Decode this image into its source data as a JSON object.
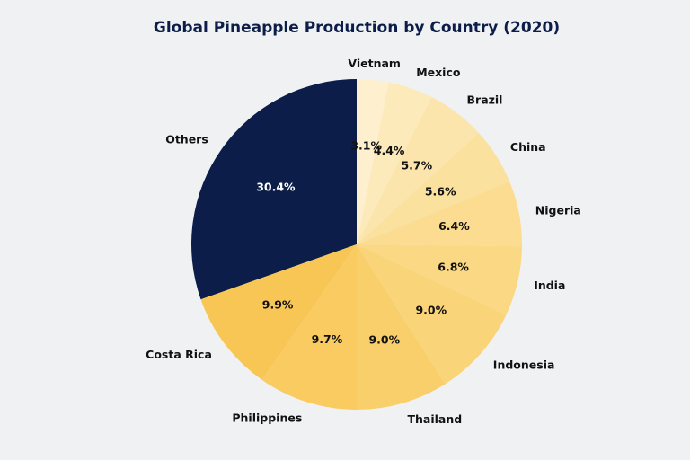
{
  "chart_data": {
    "type": "pie",
    "title": "Global Pineapple Production by Country (2020)",
    "start_angle_deg": 90,
    "direction": "counterclockwise",
    "slices": [
      {
        "label": "Others",
        "value": 30.4,
        "pct_label": "30.4%",
        "color": "#0b1d48"
      },
      {
        "label": "Costa Rica",
        "value": 9.9,
        "pct_label": "9.9%",
        "color": "#f8c655"
      },
      {
        "label": "Philippines",
        "value": 9.7,
        "pct_label": "9.7%",
        "color": "#f9cb60"
      },
      {
        "label": "Thailand",
        "value": 9.0,
        "pct_label": "9.0%",
        "color": "#f9cf6b"
      },
      {
        "label": "Indonesia",
        "value": 9.0,
        "pct_label": "9.0%",
        "color": "#fad478"
      },
      {
        "label": "India",
        "value": 6.8,
        "pct_label": "6.8%",
        "color": "#fad884"
      },
      {
        "label": "Nigeria",
        "value": 6.4,
        "pct_label": "6.4%",
        "color": "#fbdc91"
      },
      {
        "label": "China",
        "value": 5.6,
        "pct_label": "5.6%",
        "color": "#fbe19e"
      },
      {
        "label": "Brazil",
        "value": 5.7,
        "pct_label": "5.7%",
        "color": "#fce5ac"
      },
      {
        "label": "Mexico",
        "value": 4.4,
        "pct_label": "4.4%",
        "color": "#fdeaba"
      },
      {
        "label": "Vietnam",
        "value": 3.1,
        "pct_label": "3.1%",
        "color": "#fef0cf"
      }
    ],
    "dark_slice_text_color": "#ffffff",
    "light_slice_text_color": "#111111"
  }
}
